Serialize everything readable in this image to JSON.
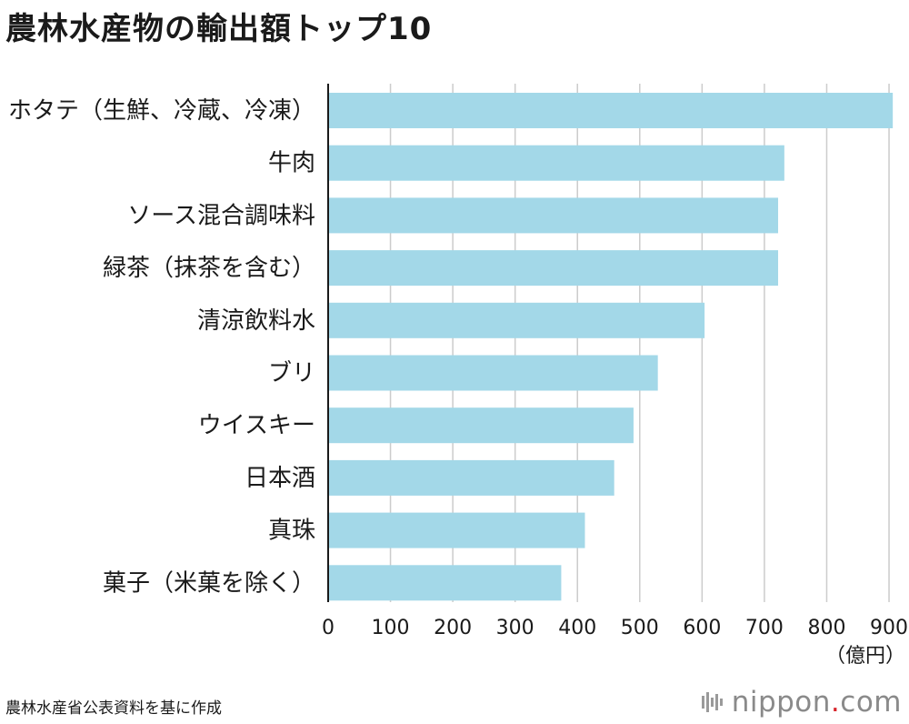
{
  "page": {
    "title": "農林水産物の輸出額トップ10",
    "source": "農林水産省公表資料を基に作成"
  },
  "brand": {
    "name_prefix": "nippon",
    "dot": ".",
    "name_suffix": "com",
    "dot_color": "#d7232a"
  },
  "chart_data": {
    "type": "bar",
    "orientation": "horizontal",
    "title": "農林水産物の輸出額トップ10",
    "categories": [
      "ホタテ（生鮮、冷蔵、冷凍）",
      "牛肉",
      "ソース混合調味料",
      "緑茶（抹茶を含む）",
      "清涼飲料水",
      "ブリ",
      "ウイスキー",
      "日本酒",
      "真珠",
      "菓子（米菓を除く）"
    ],
    "values": [
      906,
      732,
      722,
      722,
      604,
      529,
      490,
      459,
      412,
      374
    ],
    "xlim": [
      0,
      900
    ],
    "xticks": [
      0,
      100,
      200,
      300,
      400,
      500,
      600,
      700,
      800,
      900
    ],
    "unit_label": "（億円）",
    "grid": true,
    "bar_color": "#a3d8e8",
    "grid_color": "#cccccc",
    "axis_color": "#1a1a1a"
  }
}
